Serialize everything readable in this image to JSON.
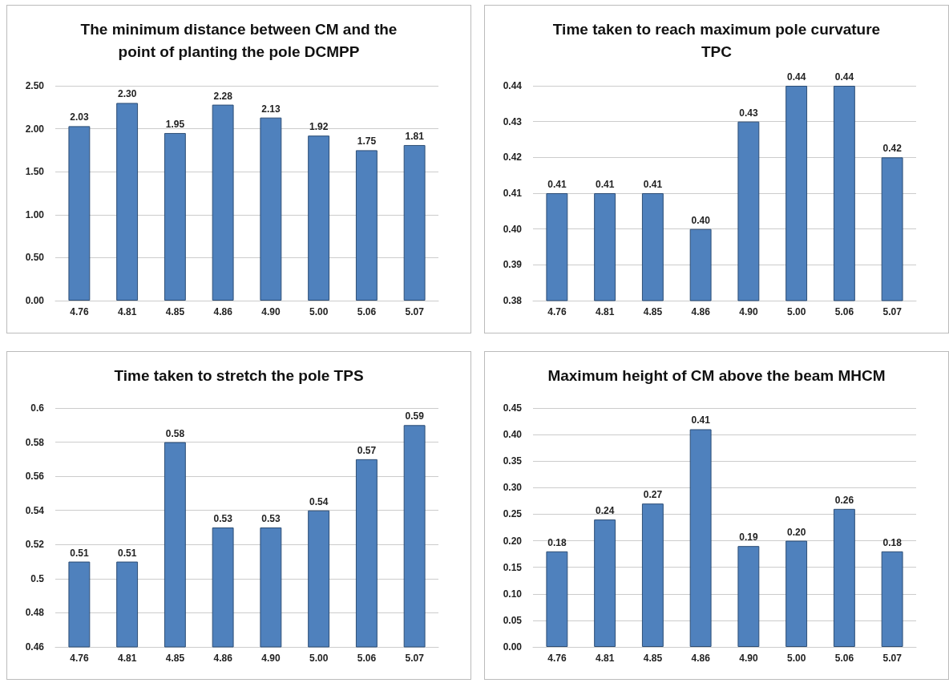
{
  "chart_data": [
    {
      "type": "bar",
      "title": "The minimum distance between CM and the\npoint of planting the pole DCMPP",
      "categories": [
        "4.76",
        "4.81",
        "4.85",
        "4.86",
        "4.90",
        "5.00",
        "5.06",
        "5.07"
      ],
      "values": [
        2.03,
        2.3,
        1.95,
        2.28,
        2.13,
        1.92,
        1.75,
        1.81
      ],
      "value_labels": [
        "2.03",
        "2.30",
        "1.95",
        "2.28",
        "2.13",
        "1.92",
        "1.75",
        "1.81"
      ],
      "color": "#4f81bd",
      "ylim": [
        0,
        2.5
      ],
      "yticks": [
        {
          "value": 0,
          "label": "0.00"
        },
        {
          "value": 0.5,
          "label": "0.50"
        },
        {
          "value": 1,
          "label": "1.00"
        },
        {
          "value": 1.5,
          "label": "1.50"
        },
        {
          "value": 2,
          "label": "2.00"
        },
        {
          "value": 2.5,
          "label": "2.50"
        }
      ],
      "grid": "y"
    },
    {
      "type": "bar",
      "title": "Time taken to reach maximum pole curvature\nTPC",
      "categories": [
        "4.76",
        "4.81",
        "4.85",
        "4.86",
        "4.90",
        "5.00",
        "5.06",
        "5.07"
      ],
      "values": [
        0.41,
        0.41,
        0.41,
        0.4,
        0.43,
        0.44,
        0.44,
        0.42
      ],
      "value_labels": [
        "0.41",
        "0.41",
        "0.41",
        "0.40",
        "0.43",
        "0.44",
        "0.44",
        "0.42"
      ],
      "color": "#4f81bd",
      "ylim": [
        0.38,
        0.44
      ],
      "yticks": [
        0.38,
        0.39,
        {
          "value": 0.4,
          "label": "0.40"
        },
        0.41,
        0.42,
        0.43,
        0.44
      ],
      "grid": "y"
    },
    {
      "type": "bar",
      "title": "Time taken to stretch the pole TPS",
      "categories": [
        "4.76",
        "4.81",
        "4.85",
        "4.86",
        "4.90",
        "5.00",
        "5.06",
        "5.07"
      ],
      "values": [
        0.51,
        0.51,
        0.58,
        0.53,
        0.53,
        0.54,
        0.57,
        0.59
      ],
      "data_labels": true,
      "color": "#4f81bd",
      "ylim": [
        0.46,
        0.6
      ],
      "yticks": [
        0.46,
        0.48,
        0.5,
        0.52,
        0.54,
        0.56,
        0.58,
        0.6
      ],
      "grid": "y"
    },
    {
      "type": "bar",
      "title": "Maximum height of CM above the beam MHCM",
      "categories": [
        "4.76",
        "4.81",
        "4.85",
        "4.86",
        "4.90",
        "5.00",
        "5.06",
        "5.07"
      ],
      "values": [
        0.18,
        0.24,
        0.27,
        0.41,
        0.19,
        0.2,
        0.26,
        0.18
      ],
      "value_labels": [
        "0.18",
        "0.24",
        "0.27",
        "0.41",
        "0.19",
        "0.20",
        "0.26",
        "0.18"
      ],
      "color": "#4f81bd",
      "ylim": [
        0,
        0.45
      ],
      "yticks": [
        {
          "value": 0,
          "label": "0.00"
        },
        {
          "value": 0.05,
          "label": "0.05"
        },
        {
          "value": 0.1,
          "label": "0.10"
        },
        {
          "value": 0.15,
          "label": "0.15"
        },
        {
          "value": 0.2,
          "label": "0.20"
        },
        {
          "value": 0.25,
          "label": "0.25"
        },
        {
          "value": 0.3,
          "label": "0.30"
        },
        {
          "value": 0.35,
          "label": "0.35"
        },
        {
          "value": 0.4,
          "label": "0.40"
        },
        {
          "value": 0.45,
          "label": "0.45"
        }
      ],
      "grid": "y"
    }
  ]
}
